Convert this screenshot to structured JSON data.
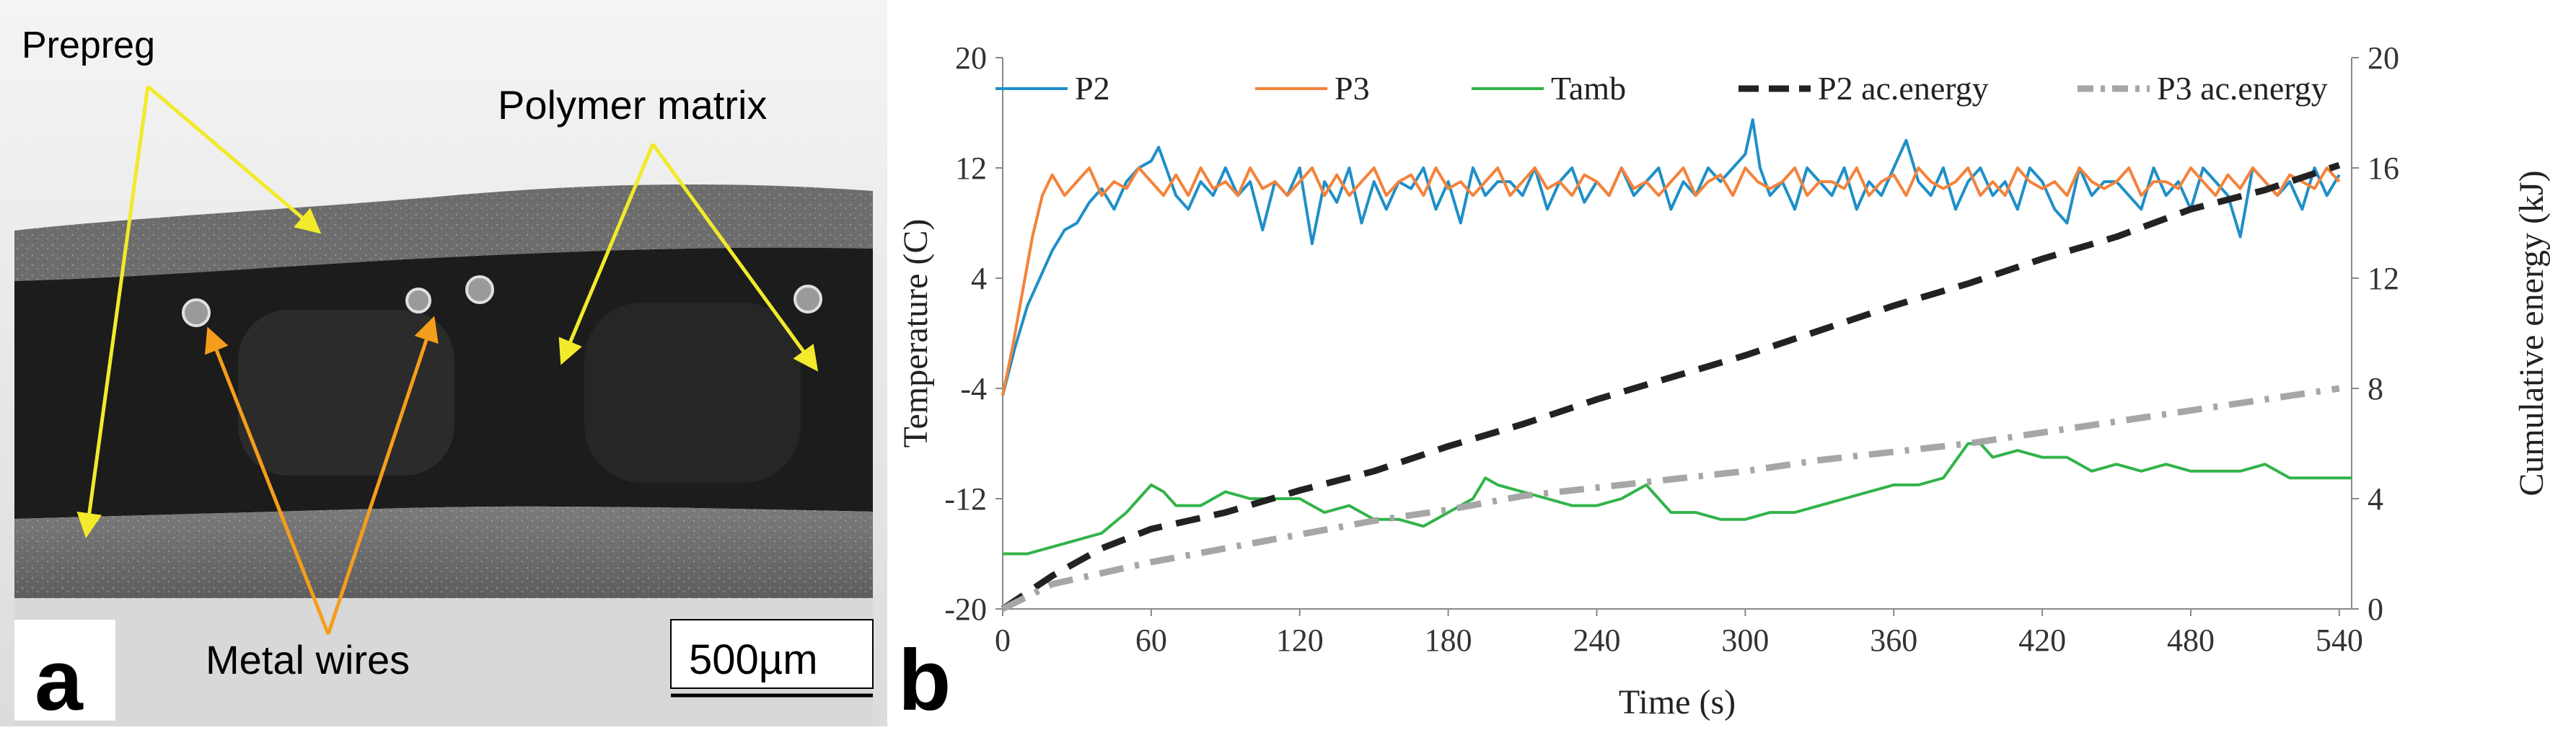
{
  "panel_a": {
    "letter": "a",
    "labels": {
      "prepreg": "Prepreg",
      "polymer_matrix": "Polymer matrix",
      "metal_wires": "Metal wires"
    },
    "scale_bar": "500µm",
    "colors": {
      "arrow_yellow": "#f2ea2a",
      "arrow_orange": "#f59e1b"
    }
  },
  "panel_b": {
    "letter": "b"
  },
  "chart_data": {
    "type": "line",
    "xlabel": "Time (s)",
    "ylabel_left": "Temperature (C)",
    "ylabel_right": "Cumulative energy (kJ)",
    "xlim": [
      0,
      545
    ],
    "ylim_left": [
      -20,
      20
    ],
    "ylim_right": [
      0,
      20
    ],
    "x_ticks": [
      0,
      60,
      120,
      180,
      240,
      300,
      360,
      420,
      480,
      540
    ],
    "x_tick_labels": [
      "0",
      "60",
      "120",
      "180",
      "240",
      "300",
      "360",
      "420",
      "480",
      "540"
    ],
    "y_left_ticks": [
      -20,
      -12,
      -4,
      4,
      12,
      20
    ],
    "y_left_tick_labels": [
      "-20",
      "-12",
      "-4",
      "4",
      "12",
      "20"
    ],
    "y_right_ticks": [
      0,
      4,
      8,
      12,
      16,
      20
    ],
    "y_right_tick_labels": [
      "0",
      "4",
      "8",
      "12",
      "16",
      "20"
    ],
    "legend": [
      "P2",
      "P3",
      "Tamb",
      "P2 ac.energy",
      "P3 ac.energy"
    ],
    "series": [
      {
        "name": "P2",
        "axis": "left",
        "color": "#1f8fc7",
        "style": "solid",
        "x": [
          0,
          5,
          10,
          15,
          20,
          25,
          30,
          35,
          40,
          45,
          50,
          55,
          60,
          63,
          66,
          70,
          75,
          80,
          85,
          90,
          95,
          100,
          105,
          110,
          115,
          120,
          125,
          130,
          135,
          140,
          145,
          150,
          155,
          160,
          165,
          170,
          175,
          180,
          185,
          190,
          195,
          200,
          205,
          210,
          215,
          220,
          225,
          230,
          235,
          240,
          245,
          250,
          255,
          260,
          265,
          270,
          275,
          280,
          285,
          290,
          295,
          300,
          303,
          306,
          310,
          315,
          320,
          325,
          330,
          335,
          340,
          345,
          350,
          355,
          360,
          365,
          370,
          375,
          380,
          385,
          390,
          395,
          400,
          405,
          410,
          415,
          420,
          425,
          430,
          435,
          440,
          445,
          450,
          455,
          460,
          465,
          470,
          475,
          480,
          485,
          490,
          495,
          500,
          505,
          510,
          515,
          520,
          525,
          530,
          535,
          540
        ],
        "values": [
          -4.5,
          -1,
          2,
          4,
          6,
          7.5,
          8,
          9.5,
          10.5,
          9,
          11,
          12,
          12.5,
          13.5,
          12,
          10,
          9,
          11,
          10,
          12,
          10,
          11,
          7.5,
          11,
          10,
          12,
          6.5,
          11,
          9.5,
          12,
          8,
          11,
          9,
          11,
          10.5,
          12,
          9,
          11,
          8,
          12,
          10,
          11,
          11,
          10,
          12,
          9,
          11,
          12,
          9.5,
          11,
          10,
          12,
          10,
          11,
          12,
          9,
          11,
          10,
          12,
          11,
          12,
          13,
          15.5,
          12,
          10,
          11,
          9,
          12,
          11,
          10,
          12,
          9,
          11,
          10,
          12,
          14,
          11,
          10,
          12,
          9,
          11,
          12,
          10,
          11,
          9,
          12,
          11,
          9,
          8,
          12,
          10,
          11,
          11,
          10,
          9,
          12,
          10,
          11,
          9,
          12,
          11,
          10,
          7,
          12,
          11,
          10,
          11,
          9,
          12,
          10,
          11.5
        ]
      },
      {
        "name": "P3",
        "axis": "left",
        "color": "#f4823a",
        "style": "solid",
        "x": [
          0,
          4,
          8,
          12,
          16,
          20,
          25,
          30,
          35,
          40,
          45,
          50,
          55,
          60,
          65,
          70,
          75,
          80,
          85,
          90,
          95,
          100,
          105,
          110,
          115,
          120,
          125,
          130,
          135,
          140,
          145,
          150,
          155,
          160,
          165,
          170,
          175,
          180,
          185,
          190,
          195,
          200,
          205,
          210,
          215,
          220,
          225,
          230,
          235,
          240,
          245,
          250,
          255,
          260,
          265,
          270,
          275,
          280,
          285,
          290,
          295,
          300,
          305,
          310,
          315,
          320,
          325,
          330,
          335,
          340,
          345,
          350,
          355,
          360,
          365,
          370,
          375,
          380,
          385,
          390,
          395,
          400,
          405,
          410,
          415,
          420,
          425,
          430,
          435,
          440,
          445,
          450,
          455,
          460,
          465,
          470,
          475,
          480,
          485,
          490,
          495,
          500,
          505,
          510,
          515,
          520,
          525,
          530,
          535,
          540
        ],
        "values": [
          -4.5,
          -1,
          3,
          7,
          10,
          11.5,
          10,
          11,
          12,
          10,
          11,
          10.5,
          12,
          11,
          10,
          11.5,
          10,
          12,
          10.5,
          11,
          10,
          12,
          10.5,
          11,
          10,
          11,
          12,
          10,
          11.5,
          10,
          11,
          12,
          10,
          11,
          11.5,
          10,
          12,
          10.5,
          11,
          10,
          11,
          12,
          10,
          11,
          12,
          10.5,
          11,
          10,
          11.5,
          11,
          10,
          12,
          10.5,
          11,
          10,
          11,
          12,
          10,
          11,
          11.5,
          10,
          12,
          11,
          10.5,
          11,
          12,
          10,
          11,
          11,
          10.5,
          12,
          10,
          11,
          11.5,
          10,
          12,
          11,
          10.5,
          11,
          12,
          10,
          11,
          10,
          12,
          11,
          10.5,
          11,
          10,
          12,
          11,
          10.5,
          11,
          12,
          10,
          11,
          11,
          10.5,
          12,
          11,
          10,
          11.5,
          10.5,
          12,
          11,
          10,
          11.5,
          11,
          10.5,
          12,
          11
        ]
      },
      {
        "name": "Tamb",
        "axis": "left",
        "color": "#33b34a",
        "style": "solid",
        "x": [
          0,
          10,
          20,
          30,
          40,
          50,
          55,
          60,
          65,
          70,
          80,
          90,
          100,
          110,
          120,
          130,
          140,
          150,
          160,
          170,
          180,
          190,
          195,
          200,
          210,
          220,
          230,
          240,
          250,
          260,
          270,
          280,
          290,
          300,
          310,
          320,
          330,
          340,
          350,
          360,
          370,
          380,
          390,
          395,
          400,
          410,
          420,
          430,
          440,
          450,
          460,
          470,
          480,
          490,
          500,
          510,
          515,
          520,
          530,
          540,
          545
        ],
        "values": [
          -16,
          -16,
          -15.5,
          -15,
          -14.5,
          -13,
          -12,
          -11,
          -11.5,
          -12.5,
          -12.5,
          -11.5,
          -12,
          -12,
          -12,
          -13,
          -12.5,
          -13.5,
          -13.5,
          -14,
          -13,
          -12,
          -10.5,
          -11,
          -11.5,
          -12,
          -12.5,
          -12.5,
          -12,
          -11,
          -13,
          -13,
          -13.5,
          -13.5,
          -13,
          -13,
          -12.5,
          -12,
          -11.5,
          -11,
          -11,
          -10.5,
          -8,
          -8,
          -9,
          -8.5,
          -9,
          -9,
          -10,
          -9.5,
          -10,
          -9.5,
          -10,
          -10,
          -10,
          -9.5,
          -10,
          -10.5,
          -10.5,
          -10.5,
          -10.5
        ]
      },
      {
        "name": "P2 ac.energy",
        "axis": "right",
        "color": "#222222",
        "style": "dash",
        "x": [
          0,
          20,
          40,
          60,
          90,
          120,
          150,
          180,
          210,
          240,
          270,
          300,
          330,
          360,
          390,
          420,
          450,
          480,
          510,
          530,
          540
        ],
        "values": [
          0,
          1.2,
          2.2,
          2.9,
          3.5,
          4.3,
          5.0,
          5.9,
          6.7,
          7.6,
          8.4,
          9.2,
          10.1,
          11.0,
          11.8,
          12.7,
          13.5,
          14.5,
          15.2,
          15.8,
          16.1
        ]
      },
      {
        "name": "P3 ac.energy",
        "axis": "right",
        "color": "#a6a6a6",
        "style": "dashdot",
        "x": [
          0,
          20,
          40,
          60,
          90,
          120,
          150,
          180,
          210,
          240,
          270,
          300,
          330,
          360,
          390,
          420,
          450,
          480,
          510,
          540
        ],
        "values": [
          0,
          0.9,
          1.3,
          1.7,
          2.2,
          2.7,
          3.2,
          3.6,
          4.1,
          4.4,
          4.7,
          5.0,
          5.4,
          5.7,
          6.0,
          6.4,
          6.8,
          7.2,
          7.6,
          8.0
        ]
      }
    ]
  }
}
